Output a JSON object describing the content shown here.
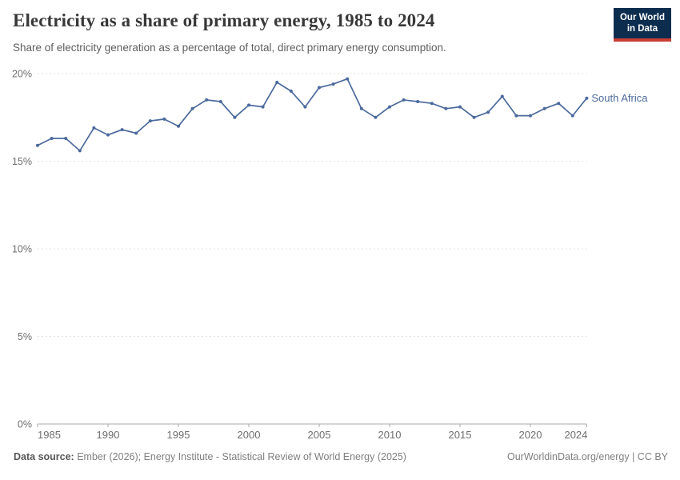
{
  "header": {
    "title": "Electricity as a share of primary energy, 1985 to 2024",
    "subtitle": "Share of electricity generation as a percentage of total, direct primary energy consumption.",
    "logo": {
      "line1": "Our World",
      "line2": "in Data",
      "bg_color": "#0d2d4e",
      "accent_color": "#c93d33"
    }
  },
  "chart_data": {
    "type": "line",
    "title": "Electricity as a share of primary energy, 1985 to 2024",
    "subtitle": "Share of electricity generation as a percentage of total, direct primary energy consumption.",
    "xlabel": "",
    "ylabel": "",
    "xlim": [
      1985,
      2024
    ],
    "ylim": [
      0,
      20
    ],
    "grid": true,
    "legend_position": "end-of-line-label",
    "x_ticks": [
      1985,
      1990,
      1995,
      2000,
      2005,
      2010,
      2015,
      2020,
      2024
    ],
    "y_ticks": [
      0,
      5,
      10,
      15,
      20
    ],
    "y_tick_suffix": "%",
    "series": [
      {
        "name": "South Africa",
        "color": "#4c6a9c",
        "x": [
          1985,
          1986,
          1987,
          1988,
          1989,
          1990,
          1991,
          1992,
          1993,
          1994,
          1995,
          1996,
          1997,
          1998,
          1999,
          2000,
          2001,
          2002,
          2003,
          2004,
          2005,
          2006,
          2007,
          2008,
          2009,
          2010,
          2011,
          2012,
          2013,
          2014,
          2015,
          2016,
          2017,
          2018,
          2019,
          2020,
          2021,
          2022,
          2023,
          2024
        ],
        "values": [
          15.9,
          16.3,
          16.3,
          15.6,
          16.9,
          16.5,
          16.8,
          16.6,
          17.3,
          17.4,
          17.0,
          18.0,
          18.5,
          18.4,
          17.5,
          18.2,
          18.1,
          19.5,
          19.0,
          18.1,
          19.2,
          19.4,
          19.7,
          18.0,
          17.5,
          18.1,
          18.5,
          18.4,
          18.3,
          18.0,
          18.1,
          17.5,
          17.8,
          18.7,
          17.6,
          17.6,
          18.0,
          18.3,
          17.6,
          18.6
        ]
      }
    ],
    "colors": {
      "gridline": "#e1e1e1",
      "axis": "#a9a9a9",
      "tick_label": "#6e6e6e"
    }
  },
  "footer": {
    "datasource_label": "Data source:",
    "datasource_text": "Ember (2026); Energy Institute - Statistical Review of World Energy (2025)",
    "right_text": "OurWorldinData.org/energy | CC BY"
  }
}
